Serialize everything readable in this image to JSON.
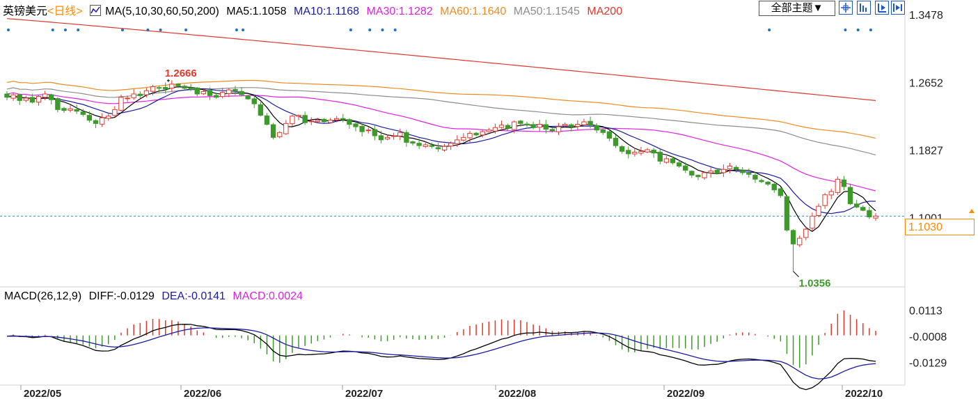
{
  "header": {
    "instrument": "英镑美元",
    "period": "<日线>",
    "ma_params": "MA(5,10,30,60,50,200)",
    "ma_values": [
      {
        "label": "MA5:1.1058",
        "color": "#000000"
      },
      {
        "label": "MA10:1.1168",
        "color": "#1a1aa6"
      },
      {
        "label": "MA30:1.1282",
        "color": "#e020e0"
      },
      {
        "label": "MA60:1.1640",
        "color": "#f08a1e"
      },
      {
        "label": "MA50:1.1545",
        "color": "#8c8c8c"
      },
      {
        "label": "MA200",
        "color": "#e0382c"
      }
    ],
    "theme_button": "全部主题▼",
    "tool_icons": [
      "crosshair-icon",
      "zoom-in-icon",
      "zoom-out-icon",
      "fullscreen-icon"
    ]
  },
  "macd_header": {
    "params": "MACD(26,12,9)",
    "diff": "DIFF:-0.0129",
    "dea": "DEA:-0.0141",
    "macd": "MACD:0.0024"
  },
  "current_price_tag": "1.1030",
  "colors": {
    "up": "#e0382c",
    "down": "#3d9a2a",
    "accent_orange": "#ff8a00",
    "grid_dash": "#3a87d6",
    "ma5": "#000000",
    "ma10": "#1a1aa6",
    "ma30": "#e020e0",
    "ma60": "#f08a1e",
    "ma50": "#8c8c8c",
    "ma200": "#e0382c"
  },
  "chart_data": [
    {
      "type": "candlestick",
      "title": "英镑美元 <日线>",
      "x_labels": [
        "2022/05",
        "2022/06",
        "2022/07",
        "2022/08",
        "2022/09",
        "2022/10"
      ],
      "y_ticks": [
        "1.3478",
        "1.2652",
        "1.1827",
        "1.1001"
      ],
      "y_range": [
        1.02,
        1.348
      ],
      "current_price": 1.103,
      "annotations": [
        {
          "text": "1.2666",
          "type": "high"
        },
        {
          "text": "1.0356",
          "type": "low"
        }
      ],
      "closes": [
        1.248,
        1.251,
        1.244,
        1.247,
        1.242,
        1.249,
        1.252,
        1.245,
        1.233,
        1.232,
        1.234,
        1.231,
        1.227,
        1.22,
        1.216,
        1.223,
        1.225,
        1.233,
        1.248,
        1.247,
        1.252,
        1.25,
        1.256,
        1.261,
        1.259,
        1.258,
        1.264,
        1.262,
        1.259,
        1.258,
        1.252,
        1.255,
        1.25,
        1.248,
        1.254,
        1.257,
        1.256,
        1.251,
        1.246,
        1.24,
        1.226,
        1.215,
        1.199,
        1.205,
        1.216,
        1.225,
        1.226,
        1.217,
        1.219,
        1.22,
        1.218,
        1.22,
        1.222,
        1.221,
        1.215,
        1.212,
        1.206,
        1.208,
        1.201,
        1.196,
        1.199,
        1.201,
        1.205,
        1.193,
        1.192,
        1.189,
        1.19,
        1.188,
        1.185,
        1.188,
        1.192,
        1.196,
        1.199,
        1.204,
        1.202,
        1.206,
        1.208,
        1.211,
        1.214,
        1.21,
        1.218,
        1.216,
        1.214,
        1.211,
        1.215,
        1.209,
        1.207,
        1.212,
        1.215,
        1.212,
        1.215,
        1.218,
        1.214,
        1.208,
        1.205,
        1.198,
        1.189,
        1.182,
        1.179,
        1.181,
        1.182,
        1.184,
        1.18,
        1.17,
        1.173,
        1.168,
        1.164,
        1.159,
        1.153,
        1.151,
        1.156,
        1.158,
        1.155,
        1.16,
        1.164,
        1.16,
        1.156,
        1.154,
        1.148,
        1.145,
        1.142,
        1.135,
        1.128,
        1.086,
        1.069,
        1.076,
        1.087,
        1.103,
        1.115,
        1.129,
        1.133,
        1.148,
        1.139,
        1.118,
        1.114,
        1.11,
        1.102,
        1.103
      ],
      "series": [
        {
          "name": "MA5",
          "color": "#000000"
        },
        {
          "name": "MA10",
          "color": "#1a1aa6"
        },
        {
          "name": "MA30",
          "color": "#e020e0"
        },
        {
          "name": "MA60",
          "color": "#f08a1e"
        },
        {
          "name": "MA50",
          "color": "#8c8c8c"
        },
        {
          "name": "MA200",
          "color": "#e0382c"
        }
      ]
    },
    {
      "type": "bar",
      "title": "MACD(26,12,9)",
      "y_ticks": [
        "0.0113",
        "-0.0008",
        "-0.0129"
      ],
      "y_range": [
        -0.022,
        0.016
      ],
      "series": [
        {
          "name": "DIFF",
          "last": -0.0129,
          "color": "#000000"
        },
        {
          "name": "DEA",
          "last": -0.0141,
          "color": "#1a1aa6"
        },
        {
          "name": "MACD",
          "last": 0.0024,
          "color": "#e020e0"
        }
      ]
    }
  ]
}
